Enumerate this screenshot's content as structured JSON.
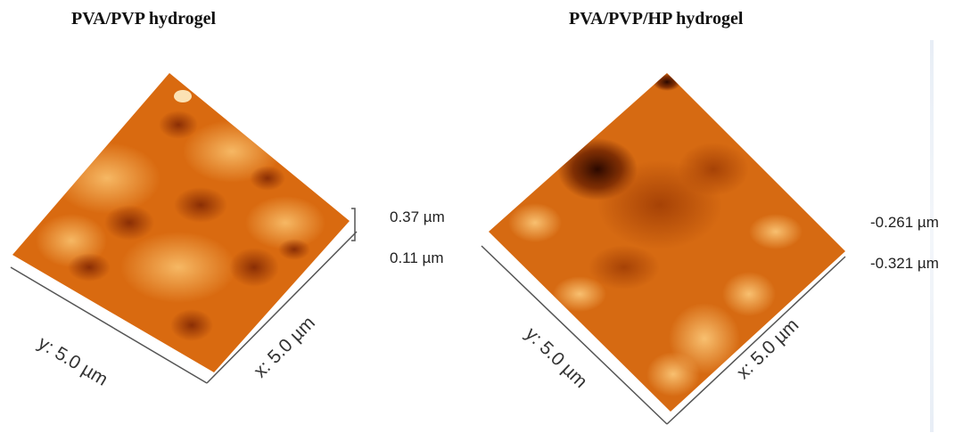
{
  "panels": [
    {
      "title": "PVA/PVP hydrogel",
      "scale_max": "0.37 µm",
      "scale_min": "0.11 µm",
      "y_axis": "y: 5.0 µm",
      "x_axis": "x: 5.0 µm"
    },
    {
      "title": "PVA/PVP/HP hydrogel",
      "scale_max": "-0.261 µm",
      "scale_min": "-0.321 µm",
      "y_axis": "y: 5.0 µm",
      "x_axis": "x: 5.0 µm"
    }
  ],
  "colors": {
    "surface_base": "#d96a10",
    "surface_light": "#f4b25a",
    "surface_dark": "#5a1a00",
    "axis_line": "#555555"
  }
}
